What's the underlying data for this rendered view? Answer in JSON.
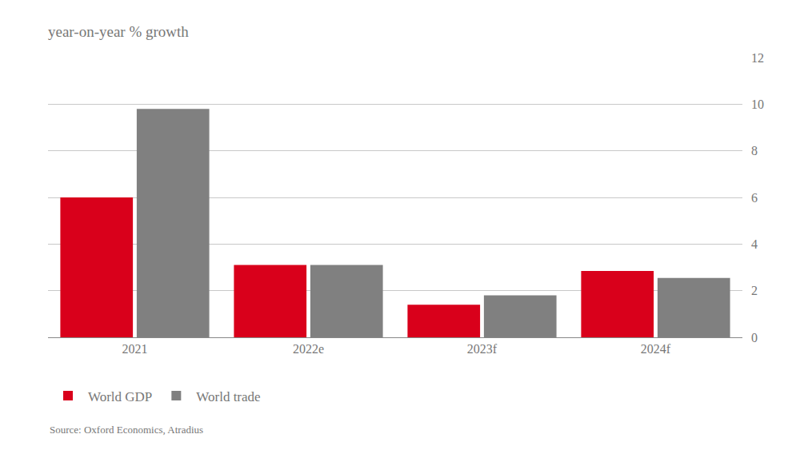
{
  "chart_data": {
    "type": "bar",
    "title": "year-on-year % growth",
    "categories": [
      "2021",
      "2022e",
      "2023f",
      "2024f"
    ],
    "series": [
      {
        "name": "World GDP",
        "color": "#d9001b",
        "values": [
          6.0,
          3.1,
          1.4,
          2.85
        ]
      },
      {
        "name": "World trade",
        "color": "#808080",
        "values": [
          9.8,
          3.1,
          1.8,
          2.55
        ]
      }
    ],
    "ylim": [
      0,
      12
    ],
    "yticks": [
      0,
      2,
      4,
      6,
      8,
      10,
      12
    ],
    "grid": true,
    "legend": "bottom left",
    "annotations": [
      "Source: Oxford Economics, Atradius"
    ]
  }
}
